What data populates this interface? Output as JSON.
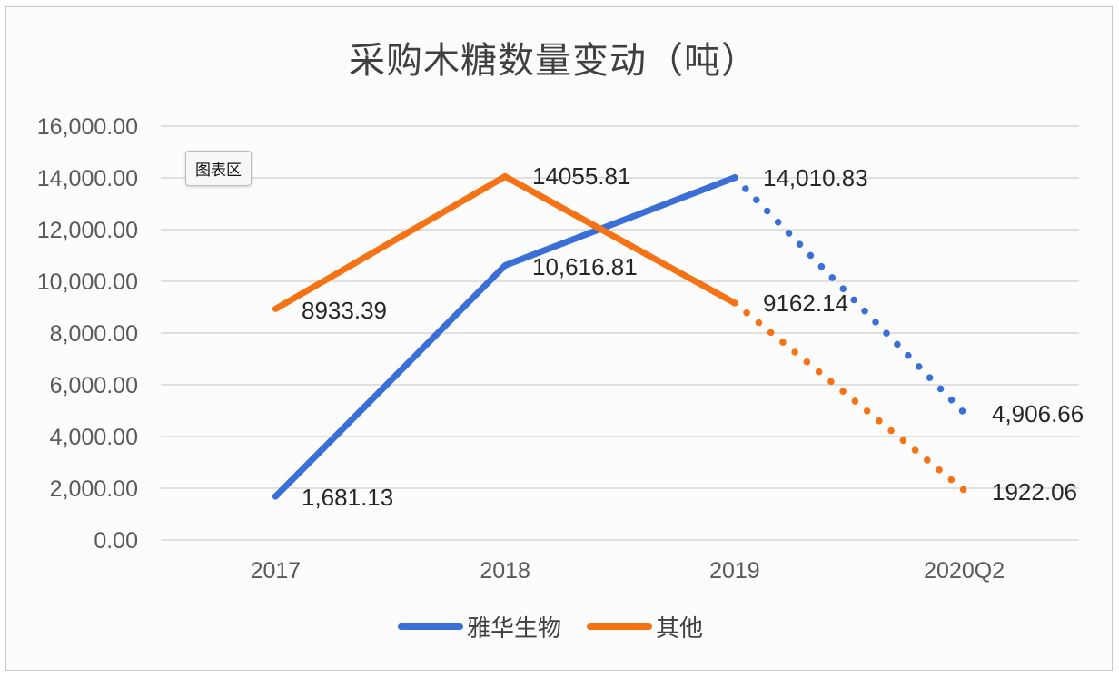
{
  "chart_data": {
    "type": "line",
    "title": "采购木糖数量变动（吨）",
    "xlabel": "",
    "ylabel": "",
    "categories": [
      "2017",
      "2018",
      "2019",
      "2020Q2"
    ],
    "ylim": [
      0,
      16000
    ],
    "yticks": [
      0,
      2000,
      4000,
      6000,
      8000,
      10000,
      12000,
      14000,
      16000
    ],
    "ytick_labels": [
      "0.00",
      "2,000.00",
      "4,000.00",
      "6,000.00",
      "8,000.00",
      "10,000.00",
      "12,000.00",
      "14,000.00",
      "16,000.00"
    ],
    "grid": true,
    "legend_position": "bottom",
    "series": [
      {
        "name": "雅华生物",
        "color": "#3b6fd8",
        "values": [
          1681.13,
          10616.81,
          14010.83,
          4906.66
        ],
        "labels": [
          "1,681.13",
          "10,616.81",
          "14,010.83",
          "4,906.66"
        ],
        "dotted_from_index": 2
      },
      {
        "name": "其他",
        "color": "#f57314",
        "values": [
          8933.39,
          14055.81,
          9162.14,
          1922.06
        ],
        "labels": [
          "8933.39",
          "14055.81",
          "9162.14",
          "1922.06"
        ],
        "dotted_from_index": 2
      }
    ]
  },
  "tooltip": {
    "label": "图表区"
  },
  "legend": {
    "items": [
      {
        "label": "雅华生物",
        "color": "#3b6fd8"
      },
      {
        "label": "其他",
        "color": "#f57314"
      }
    ]
  }
}
